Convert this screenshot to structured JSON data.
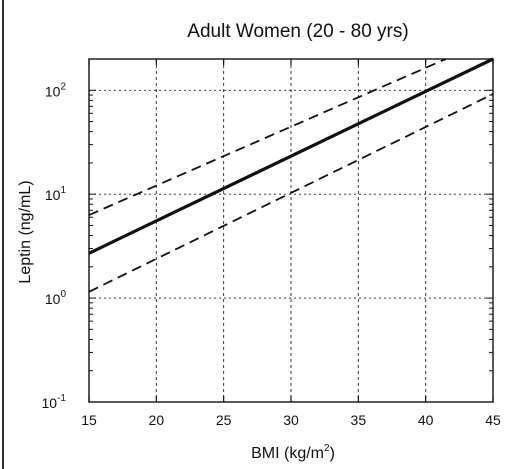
{
  "chart_data": {
    "type": "line",
    "title": "Adult Women (20 - 80 yrs)",
    "xlabel": {
      "prefix": "BMI (kg/m",
      "sup": "2",
      "suffix": ")"
    },
    "ylabel": "Leptin (ng/mL)",
    "xlim": [
      15,
      45
    ],
    "ylim": [
      0.1,
      200
    ],
    "yscale": "log",
    "grid": true,
    "xticks": [
      15,
      20,
      25,
      30,
      35,
      40,
      45
    ],
    "yticks": [
      {
        "value": 0.1,
        "base": "10",
        "exp": "-1"
      },
      {
        "value": 1,
        "base": "10",
        "exp": "0"
      },
      {
        "value": 10,
        "base": "10",
        "exp": "1"
      },
      {
        "value": 100,
        "base": "10",
        "exp": "2"
      }
    ],
    "series": [
      {
        "style": "solid",
        "x": [
          15,
          45
        ],
        "y": [
          2.7,
          200
        ]
      },
      {
        "style": "dashed",
        "x": [
          15,
          41.5
        ],
        "y": [
          6.3,
          200
        ]
      },
      {
        "style": "dashed",
        "x": [
          15,
          45
        ],
        "y": [
          1.15,
          92
        ]
      }
    ]
  }
}
